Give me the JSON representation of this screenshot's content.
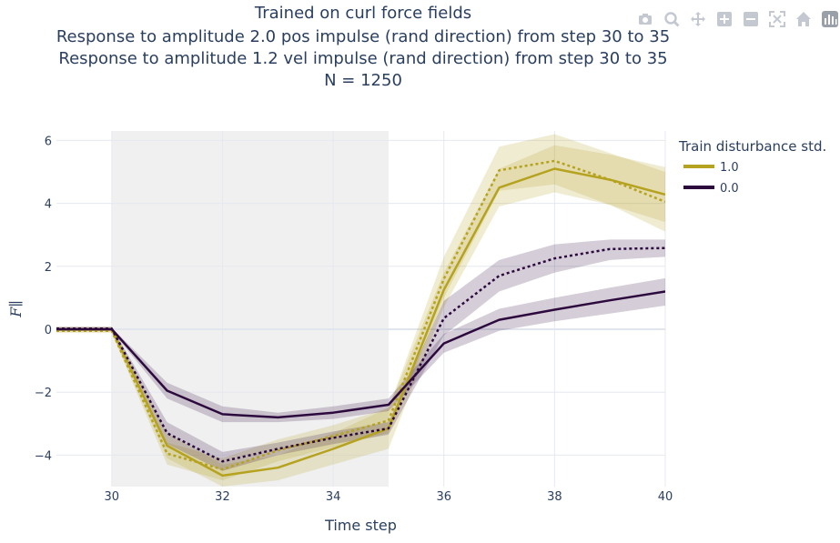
{
  "modebar": {
    "buttons": [
      {
        "name": "camera-icon"
      },
      {
        "name": "zoom-icon"
      },
      {
        "name": "pan-icon"
      },
      {
        "name": "zoom-in-icon"
      },
      {
        "name": "zoom-out-icon"
      },
      {
        "name": "autoscale-icon"
      },
      {
        "name": "home-icon"
      },
      {
        "name": "plotly-logo-icon"
      }
    ],
    "color": "#c4c9d1"
  },
  "chart_data": {
    "type": "line",
    "title": [
      "Trained on curl force fields",
      "Response to amplitude 2.0 pos impulse (rand direction) from step 30 to 35",
      "Response to amplitude 1.2 vel impulse (rand direction) from step 30 to 35",
      "N = 1250"
    ],
    "xlabel": "Time step",
    "ylabel": "F∥",
    "xlim": [
      29,
      40
    ],
    "ylim": [
      -5,
      6.3
    ],
    "xticks": [
      30,
      32,
      34,
      36,
      38,
      40
    ],
    "yticks": [
      -4,
      -2,
      0,
      2,
      4,
      6
    ],
    "ytick_labels": [
      "−4",
      "−2",
      "0",
      "2",
      "4",
      "6"
    ],
    "shaded_region": [
      30,
      35
    ],
    "grid": true,
    "legend_position": "top-right",
    "legend": {
      "title": "Train disturbance std.",
      "entries": [
        {
          "label": "1.0",
          "color": "#b5a21f"
        },
        {
          "label": "0.0",
          "color": "#2d0a3e"
        }
      ]
    },
    "x": [
      29,
      30,
      31,
      32,
      33,
      34,
      35,
      36,
      37,
      38,
      39,
      40
    ],
    "series": [
      {
        "name": "1.0",
        "style": "solid",
        "color": "#b5a21f",
        "values": [
          0.0,
          0.0,
          -3.7,
          -4.65,
          -4.4,
          -3.8,
          -3.15,
          1.25,
          4.5,
          5.1,
          4.75,
          4.28
        ],
        "lower": [
          -0.08,
          -0.08,
          -4.1,
          -5.0,
          -4.8,
          -4.3,
          -3.8,
          0.7,
          3.9,
          4.35,
          3.95,
          3.4
        ],
        "upper": [
          0.08,
          0.08,
          -3.3,
          -4.3,
          -4.0,
          -3.3,
          -2.5,
          1.8,
          5.1,
          5.85,
          5.55,
          5.15
        ]
      },
      {
        "name": "1.0",
        "style": "dotted",
        "color": "#b5a21f",
        "values": [
          -0.05,
          -0.05,
          -3.95,
          -4.45,
          -3.85,
          -3.4,
          -2.9,
          1.6,
          5.05,
          5.35,
          4.75,
          4.05
        ],
        "lower": [
          -0.12,
          -0.12,
          -4.3,
          -4.8,
          -4.2,
          -3.75,
          -3.3,
          1.0,
          4.4,
          4.6,
          3.95,
          3.1
        ],
        "upper": [
          0.03,
          0.03,
          -3.6,
          -4.1,
          -3.5,
          -3.05,
          -2.5,
          2.3,
          5.8,
          6.2,
          5.6,
          5.0
        ]
      },
      {
        "name": "0.0",
        "style": "solid",
        "color": "#2d0a3e",
        "values": [
          0.0,
          0.0,
          -1.95,
          -2.7,
          -2.8,
          -2.65,
          -2.4,
          -0.45,
          0.3,
          0.62,
          0.92,
          1.2
        ],
        "lower": [
          -0.05,
          -0.05,
          -2.2,
          -2.95,
          -2.95,
          -2.85,
          -2.6,
          -0.75,
          -0.05,
          0.25,
          0.5,
          0.75
        ],
        "upper": [
          0.05,
          0.05,
          -1.7,
          -2.45,
          -2.65,
          -2.45,
          -2.2,
          -0.15,
          0.65,
          1.0,
          1.32,
          1.62
        ]
      },
      {
        "name": "0.0",
        "style": "dotted",
        "color": "#2d0a3e",
        "values": [
          0.02,
          0.02,
          -3.3,
          -4.2,
          -3.8,
          -3.45,
          -3.15,
          0.35,
          1.7,
          2.25,
          2.55,
          2.58
        ],
        "lower": [
          -0.05,
          -0.05,
          -3.65,
          -4.5,
          -4.0,
          -3.65,
          -3.35,
          -0.2,
          1.2,
          1.8,
          2.2,
          2.3
        ],
        "upper": [
          0.08,
          0.08,
          -2.95,
          -3.9,
          -3.6,
          -3.25,
          -2.95,
          0.9,
          2.2,
          2.7,
          2.85,
          2.85
        ]
      }
    ]
  }
}
